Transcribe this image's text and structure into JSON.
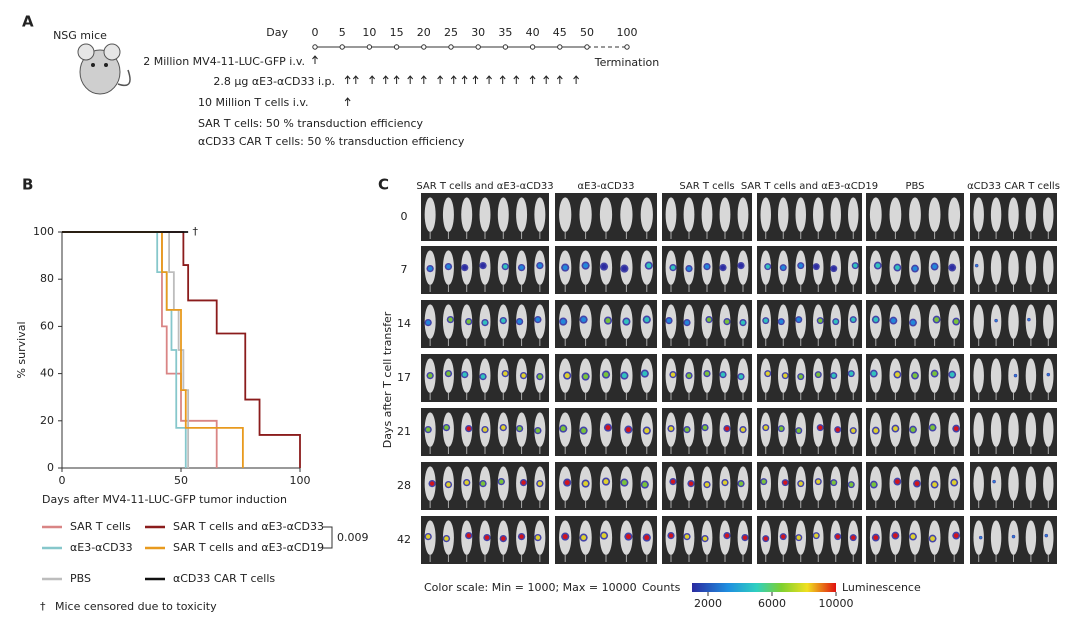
{
  "panel_a": {
    "label": "A",
    "mouse_label": "NSG mice",
    "day_label": "Day",
    "days": [
      0,
      5,
      10,
      15,
      20,
      25,
      30,
      35,
      40,
      45,
      50,
      100
    ],
    "tumor": "2 Million MV4-11-LUC-GFP i.v.",
    "tumor_day": 0,
    "termination": "Termination",
    "antibody": "2.8 µg αE3-αCD33 i.p.",
    "antibody_days": [
      6,
      7.5,
      10.5,
      13,
      15,
      17.5,
      20,
      23,
      25.5,
      27.5,
      29.5,
      32,
      34.5,
      37,
      40,
      42.5,
      45,
      48
    ],
    "tcells": "10 Million T cells i.v.",
    "tcells_day": 6,
    "notes": [
      "SAR T cells: 50 % transduction efficiency",
      "αCD33 CAR T cells: 50 % transduction efficiency"
    ]
  },
  "chart_data": {
    "type": "line",
    "panel_label": "B",
    "x_label": "Days after MV4-11-LUC-GFP tumor induction",
    "y_label": "% survival",
    "xlim": [
      0,
      100
    ],
    "ylim": [
      0,
      100
    ],
    "xticks": [
      0,
      50,
      100
    ],
    "yticks": [
      0,
      20,
      40,
      60,
      80,
      100
    ],
    "series": [
      {
        "name": "SAR T cells",
        "color": "#d98585",
        "x": [
          0,
          42,
          44,
          50,
          65
        ],
        "values": [
          100,
          60,
          40,
          20,
          0
        ]
      },
      {
        "name": "αE3-αCD33",
        "color": "#86c7cb",
        "x": [
          0,
          40,
          44,
          46,
          48,
          52
        ],
        "values": [
          100,
          83,
          67,
          50,
          17,
          0
        ]
      },
      {
        "name": "PBS",
        "color": "#bdbdbd",
        "x": [
          0,
          45,
          47,
          49,
          51,
          53
        ],
        "values": [
          100,
          83,
          67,
          50,
          33,
          0
        ]
      },
      {
        "name": "SAR T cells and αE3-αCD33",
        "color": "#8b1c1c",
        "x": [
          0,
          51,
          53,
          65,
          77,
          83,
          100
        ],
        "values": [
          100,
          86,
          71,
          57,
          29,
          14,
          0
        ]
      },
      {
        "name": "SAR T cells and αE3-αCD19",
        "color": "#e89a1e",
        "x": [
          0,
          42,
          44,
          50,
          52,
          76
        ],
        "values": [
          100,
          83,
          67,
          33,
          17,
          0
        ]
      },
      {
        "name": "αCD33 CAR T cells",
        "color": "#111111",
        "x": [
          0,
          53
        ],
        "values": [
          100,
          100
        ]
      }
    ],
    "censor_symbol": "†",
    "censor_x": 56,
    "censor_y": 100,
    "p_value": "0.009",
    "legend_note": "Mice censored due to toxicity"
  },
  "panel_c": {
    "label": "C",
    "columns": [
      "SAR T cells and αE3-αCD33",
      "αE3-αCD33",
      "SAR T cells",
      "SAR T cells and αE3-αCD19",
      "PBS",
      "αCD33 CAR T cells"
    ],
    "rows": [
      "0",
      "7",
      "14",
      "17",
      "21",
      "28",
      "42"
    ],
    "row_axis_label": "Days after T cell transfer",
    "colorbar": {
      "caption": "Color scale: Min = 1000; Max = 10000",
      "left": "Counts",
      "right": "Luminescence",
      "lim": [
        1000,
        10000
      ],
      "ticks": [
        2000,
        6000,
        10000
      ]
    }
  }
}
